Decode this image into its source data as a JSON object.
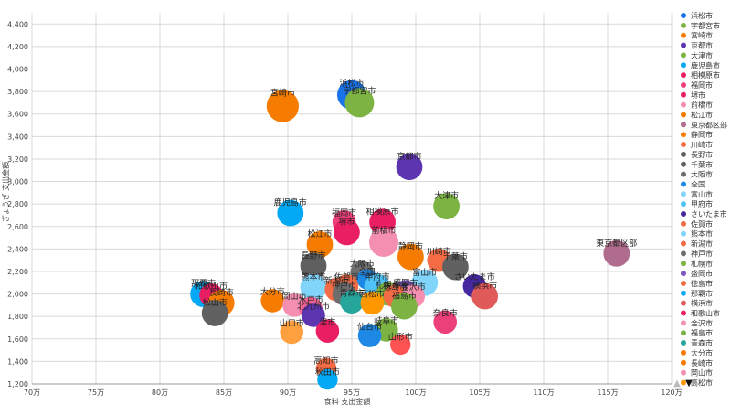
{
  "chart_data": {
    "type": "scatter",
    "title": "",
    "xlabel": "食料 支出金額",
    "ylabel": "ぎょうざ 支出金額",
    "xlim": [
      700000,
      1200000
    ],
    "ylim": [
      1200,
      4500
    ],
    "x_ticks": [
      700000,
      750000,
      800000,
      850000,
      900000,
      950000,
      1000000,
      1050000,
      1100000,
      1150000,
      1200000
    ],
    "x_tick_labels": [
      "70万",
      "75万",
      "80万",
      "85万",
      "90万",
      "95万",
      "100万",
      "105万",
      "110万",
      "115万",
      "120万"
    ],
    "y_ticks": [
      1200,
      1400,
      1600,
      1800,
      2000,
      2200,
      2400,
      2600,
      2800,
      3000,
      3200,
      3400,
      3600,
      3800,
      4000,
      4200,
      4400
    ],
    "y_tick_labels": [
      "1,200",
      "1,400",
      "1,600",
      "1,800",
      "2,000",
      "2,200",
      "2,400",
      "2,600",
      "2,800",
      "3,000",
      "3,200",
      "3,400",
      "3,600",
      "3,800",
      "4,000",
      "4,200",
      "4,400"
    ],
    "grid": true,
    "legend_position": "right",
    "series": [
      {
        "name": "浜松市",
        "color": "#1a73e8",
        "x": 950000,
        "y": 3770,
        "size": 2.0
      },
      {
        "name": "宇都宮市",
        "color": "#7cb342",
        "x": 956000,
        "y": 3700,
        "size": 2.0
      },
      {
        "name": "宮崎市",
        "color": "#f57c00",
        "x": 896000,
        "y": 3670,
        "size": 2.2
      },
      {
        "name": "京都市",
        "color": "#5e35b1",
        "x": 995000,
        "y": 3130,
        "size": 1.8
      },
      {
        "name": "大津市",
        "color": "#7cb342",
        "x": 1024000,
        "y": 2780,
        "size": 1.8
      },
      {
        "name": "鹿児島市",
        "color": "#03a9f4",
        "x": 902000,
        "y": 2720,
        "size": 1.8
      },
      {
        "name": "相模原市",
        "color": "#e91e63",
        "x": 974000,
        "y": 2640,
        "size": 1.8
      },
      {
        "name": "福岡市",
        "color": "#ec407a",
        "x": 944000,
        "y": 2640,
        "size": 1.6
      },
      {
        "name": "堺市",
        "color": "#e91e63",
        "x": 946000,
        "y": 2550,
        "size": 1.8
      },
      {
        "name": "前橋市",
        "color": "#f48fb1",
        "x": 975000,
        "y": 2460,
        "size": 2.0
      },
      {
        "name": "松江市",
        "color": "#f57c00",
        "x": 925000,
        "y": 2440,
        "size": 1.8
      },
      {
        "name": "東京都区部",
        "color": "#b06c8c",
        "x": 1157000,
        "y": 2360,
        "size": 1.8
      },
      {
        "name": "静岡市",
        "color": "#f57c00",
        "x": 996000,
        "y": 2330,
        "size": 1.8
      },
      {
        "name": "川崎市",
        "color": "#f36c45",
        "x": 1018000,
        "y": 2300,
        "size": 1.6
      },
      {
        "name": "長野市",
        "color": "#5f5f5f",
        "x": 920000,
        "y": 2250,
        "size": 1.8
      },
      {
        "name": "千葉市",
        "color": "#616161",
        "x": 1031000,
        "y": 2240,
        "size": 1.8
      },
      {
        "name": "大阪市",
        "color": "#6d6d6d",
        "x": 958000,
        "y": 2190,
        "size": 1.6
      },
      {
        "name": "全国",
        "color": "#1e88e5",
        "x": 962000,
        "y": 2130,
        "size": 1.4
      },
      {
        "name": "富山市",
        "color": "#81d4fa",
        "x": 1007000,
        "y": 2100,
        "size": 1.8
      },
      {
        "name": "甲府市",
        "color": "#4fc3f7",
        "x": 970000,
        "y": 2060,
        "size": 1.8
      },
      {
        "name": "さいたま市",
        "color": "#4527a0",
        "x": 1046000,
        "y": 2070,
        "size": 1.6
      },
      {
        "name": "佐賀市",
        "color": "#f36c45",
        "x": 946000,
        "y": 2070,
        "size": 1.6
      },
      {
        "name": "熊本市",
        "color": "#81d4fa",
        "x": 920000,
        "y": 2060,
        "size": 1.8
      },
      {
        "name": "新潟市",
        "color": "#f36c45",
        "x": 938000,
        "y": 2040,
        "size": 1.6
      },
      {
        "name": "神戸市",
        "color": "#6d6d6d",
        "x": 944000,
        "y": 2000,
        "size": 1.6
      },
      {
        "name": "札幌市",
        "color": "#7cb342",
        "x": 978000,
        "y": 2000,
        "size": 1.6
      },
      {
        "name": "盛岡市",
        "color": "#7e57c2",
        "x": 992000,
        "y": 2020,
        "size": 1.6
      },
      {
        "name": "徳島市",
        "color": "#f36c45",
        "x": 984000,
        "y": 1980,
        "size": 1.6
      },
      {
        "name": "那覇市",
        "color": "#03a9f4",
        "x": 834000,
        "y": 2000,
        "size": 1.8
      },
      {
        "name": "横浜市",
        "color": "#e05a5a",
        "x": 1054000,
        "y": 1980,
        "size": 1.8
      },
      {
        "name": "和歌山市",
        "color": "#e91e63",
        "x": 840000,
        "y": 1990,
        "size": 1.6
      },
      {
        "name": "金沢市",
        "color": "#f48fb1",
        "x": 998000,
        "y": 1980,
        "size": 1.6
      },
      {
        "name": "福島市",
        "color": "#7cb342",
        "x": 991000,
        "y": 1890,
        "size": 1.8
      },
      {
        "name": "青森市",
        "color": "#26a69a",
        "x": 950000,
        "y": 1930,
        "size": 1.6
      },
      {
        "name": "大分市",
        "color": "#f57c00",
        "x": 888000,
        "y": 1940,
        "size": 1.6
      },
      {
        "name": "長崎市",
        "color": "#f57c00",
        "x": 848000,
        "y": 1920,
        "size": 1.8
      },
      {
        "name": "岡山市",
        "color": "#f48fb1",
        "x": 905000,
        "y": 1900,
        "size": 1.6
      },
      {
        "name": "高松市",
        "color": "#ff9800",
        "x": 966000,
        "y": 1920,
        "size": 1.6
      },
      {
        "name": "水戸市",
        "color": "#f06292",
        "x": 918000,
        "y": 1870,
        "size": 1.6
      },
      {
        "name": "松山市",
        "color": "#616161",
        "x": 843000,
        "y": 1830,
        "size": 1.8
      },
      {
        "name": "北九州市",
        "color": "#5e35b1",
        "x": 920000,
        "y": 1810,
        "size": 1.6
      },
      {
        "name": "奈良市",
        "color": "#ec407a",
        "x": 1023000,
        "y": 1750,
        "size": 1.6
      },
      {
        "name": "山口市",
        "color": "#ffa040",
        "x": 903000,
        "y": 1660,
        "size": 1.6
      },
      {
        "name": "津市",
        "color": "#e91e63",
        "x": 931000,
        "y": 1670,
        "size": 1.6
      },
      {
        "name": "岐阜市",
        "color": "#7cb342",
        "x": 977000,
        "y": 1680,
        "size": 1.6
      },
      {
        "name": "仙台市",
        "color": "#1e88e5",
        "x": 964000,
        "y": 1630,
        "size": 1.6
      },
      {
        "name": "山形市",
        "color": "#ff5252",
        "x": 988000,
        "y": 1550,
        "size": 1.4
      },
      {
        "name": "高知市",
        "color": "#f36c45",
        "x": 930000,
        "y": 1340,
        "size": 1.4
      },
      {
        "name": "秋田市",
        "color": "#03a9f4",
        "x": 931000,
        "y": 1240,
        "size": 1.4
      }
    ]
  }
}
